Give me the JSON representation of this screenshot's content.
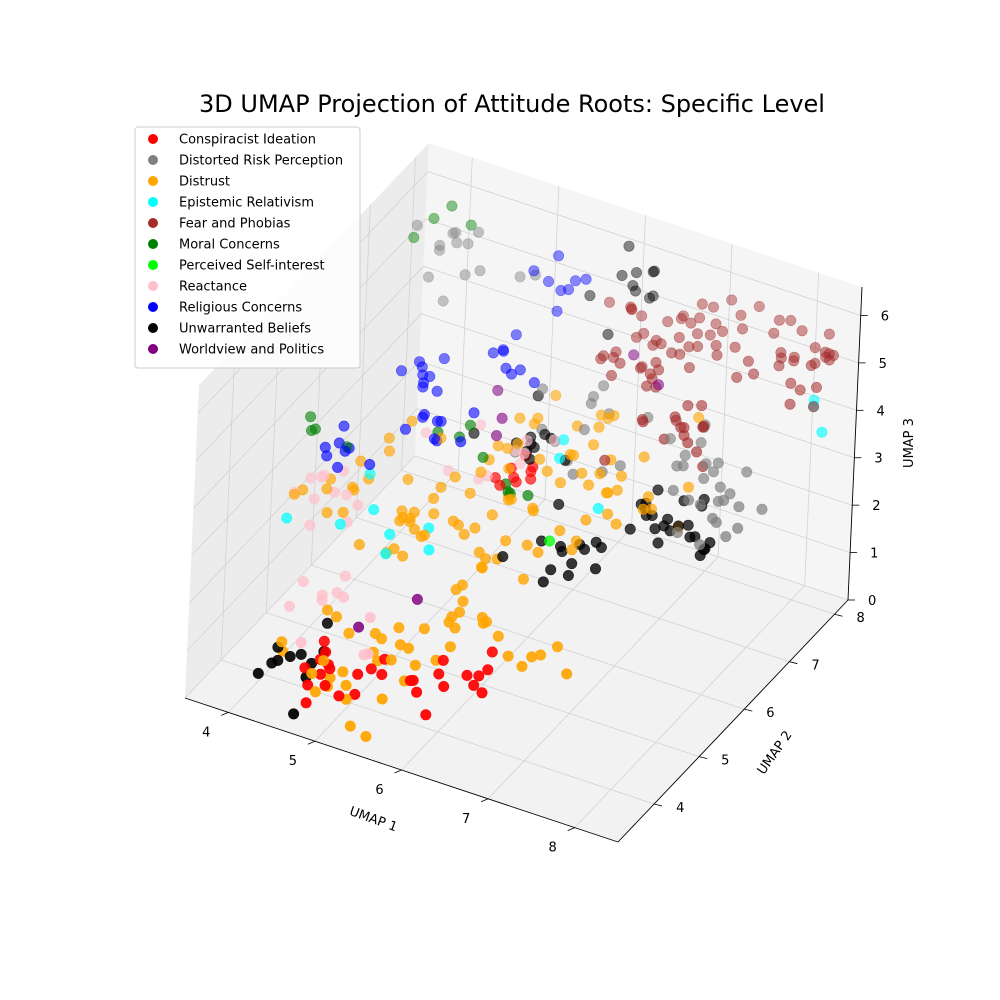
{
  "chart_data": {
    "type": "scatter",
    "projection": "3d",
    "title": "3D UMAP Projection of Attitude Roots: Specific Level",
    "xlabel": "UMAP 1",
    "ylabel": "UMAP 2",
    "zlabel": "UMAP 3",
    "xlim": [
      3.5,
      8.5
    ],
    "ylim": [
      3.2,
      8.3
    ],
    "zlim": [
      0,
      6.6
    ],
    "xticks": [
      "4",
      "5",
      "6",
      "7",
      "8"
    ],
    "yticks": [
      "4",
      "5",
      "6",
      "7",
      "8"
    ],
    "zticks": [
      "0",
      "1",
      "2",
      "3",
      "4",
      "5",
      "6"
    ],
    "grid": true,
    "legend_position": "top-left",
    "series": [
      {
        "name": "Conspiracist Ideation",
        "color": "#ff0000",
        "centers": [
          [
            6.2,
            4.0,
            1.2
          ],
          [
            5.2,
            4.2,
            0.6
          ],
          [
            4.9,
            3.6,
            0.9
          ],
          [
            5.6,
            6.2,
            3.0
          ]
        ],
        "spread": 0.25,
        "count": 38
      },
      {
        "name": "Distorted Risk Perception",
        "color": "#808080",
        "centers": [
          [
            7.6,
            6.8,
            3.0
          ],
          [
            4.2,
            7.5,
            5.6
          ],
          [
            7.2,
            7.0,
            3.6
          ],
          [
            6.0,
            7.0,
            3.2
          ]
        ],
        "spread": 0.35,
        "count": 55
      },
      {
        "name": "Distrust",
        "color": "#ffa500",
        "centers": [
          [
            5.0,
            3.8,
            0.8
          ],
          [
            5.6,
            5.5,
            2.3
          ],
          [
            6.6,
            6.4,
            3.0
          ],
          [
            4.6,
            5.6,
            2.6
          ],
          [
            5.8,
            4.6,
            1.5
          ],
          [
            6.2,
            5.8,
            3.8
          ]
        ],
        "spread": 0.5,
        "count": 140
      },
      {
        "name": "Epistemic Relativism",
        "color": "#00ffff",
        "centers": [
          [
            4.2,
            4.8,
            3.0
          ],
          [
            5.2,
            5.0,
            2.6
          ],
          [
            8.2,
            8.0,
            4.5
          ],
          [
            6.6,
            6.3,
            3.5
          ]
        ],
        "spread": 0.3,
        "count": 14
      },
      {
        "name": "Fear and Phobias",
        "color": "#a52a2a",
        "centers": [
          [
            7.3,
            8.0,
            5.0
          ],
          [
            6.6,
            7.6,
            5.4
          ],
          [
            6.5,
            7.6,
            4.6
          ],
          [
            8.2,
            7.8,
            5.4
          ],
          [
            7.0,
            7.1,
            4.2
          ]
        ],
        "spread": 0.35,
        "count": 90
      },
      {
        "name": "Moral Concerns",
        "color": "#008000",
        "centers": [
          [
            4.0,
            7.6,
            5.8
          ],
          [
            5.1,
            6.2,
            3.4
          ],
          [
            5.6,
            6.2,
            2.8
          ],
          [
            3.8,
            5.6,
            3.4
          ]
        ],
        "spread": 0.2,
        "count": 16
      },
      {
        "name": "Perceived Self-interest",
        "color": "#00ff00",
        "centers": [
          [
            6.3,
            5.7,
            2.6
          ]
        ],
        "spread": 0.05,
        "count": 1
      },
      {
        "name": "Reactance",
        "color": "#ffc0cb",
        "centers": [
          [
            4.0,
            5.0,
            3.0
          ],
          [
            4.6,
            4.5,
            1.4
          ],
          [
            5.4,
            6.2,
            3.4
          ]
        ],
        "spread": 0.35,
        "count": 32
      },
      {
        "name": "Religious Concerns",
        "color": "#0000ff",
        "centers": [
          [
            4.4,
            6.6,
            3.8
          ],
          [
            4.8,
            6.0,
            3.6
          ],
          [
            4.2,
            5.4,
            3.4
          ],
          [
            5.2,
            7.0,
            4.4
          ],
          [
            5.4,
            7.8,
            5.2
          ]
        ],
        "spread": 0.2,
        "count": 42
      },
      {
        "name": "Unwarranted Beliefs",
        "color": "#000000",
        "centers": [
          [
            7.5,
            6.6,
            2.8
          ],
          [
            7.0,
            6.4,
            2.7
          ],
          [
            6.5,
            5.8,
            2.2
          ],
          [
            5.6,
            6.6,
            3.4
          ],
          [
            4.4,
            3.7,
            0.6
          ],
          [
            6.3,
            7.8,
            5.6
          ]
        ],
        "spread": 0.28,
        "count": 70
      },
      {
        "name": "Worldview and Politics",
        "color": "#800080",
        "centers": [
          [
            5.4,
            6.4,
            3.8
          ],
          [
            5.2,
            4.6,
            1.6
          ],
          [
            6.6,
            7.6,
            4.8
          ]
        ],
        "spread": 0.3,
        "count": 7
      }
    ]
  }
}
